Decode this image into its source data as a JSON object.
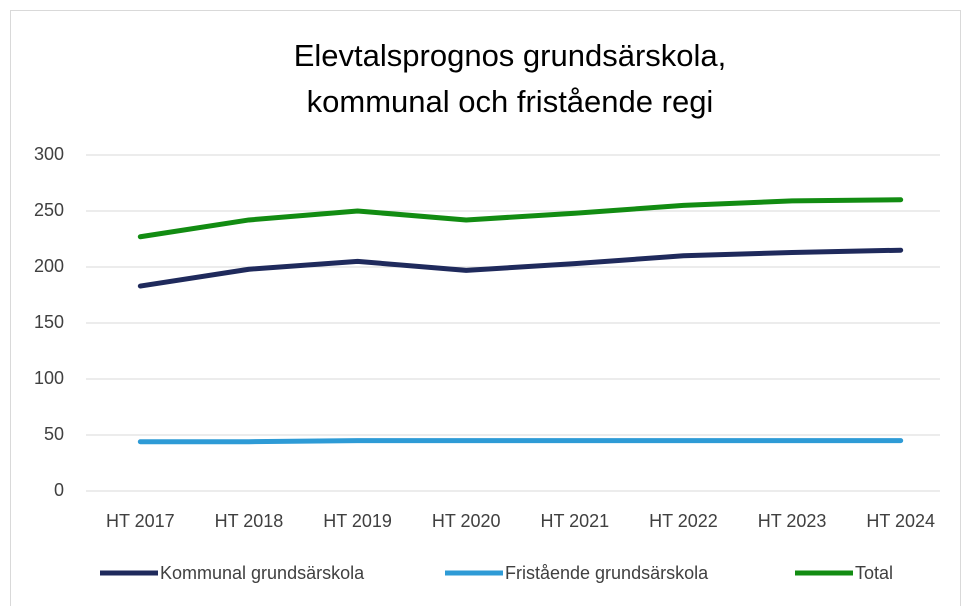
{
  "chart_data": {
    "type": "line",
    "title": [
      "Elevtalsprognos grundsärskola,",
      "kommunal och fristående regi"
    ],
    "categories": [
      "HT 2017",
      "HT 2018",
      "HT 2019",
      "HT 2020",
      "HT 2021",
      "HT 2022",
      "HT 2023",
      "HT 2024"
    ],
    "series": [
      {
        "name": "Kommunal grundsärskola",
        "color": "#1f2a5c",
        "values": [
          183,
          198,
          205,
          197,
          203,
          210,
          213,
          215
        ]
      },
      {
        "name": "Fristående grundsärskola",
        "color": "#2e9bd6",
        "values": [
          44,
          44,
          45,
          45,
          45,
          45,
          45,
          45
        ]
      },
      {
        "name": "Total",
        "color": "#128c12",
        "values": [
          227,
          242,
          250,
          242,
          248,
          255,
          259,
          260
        ]
      }
    ],
    "ylim": [
      0,
      300
    ],
    "yticks": [
      0,
      50,
      100,
      150,
      200,
      250,
      300
    ],
    "grid": true,
    "legend": "bottom"
  }
}
